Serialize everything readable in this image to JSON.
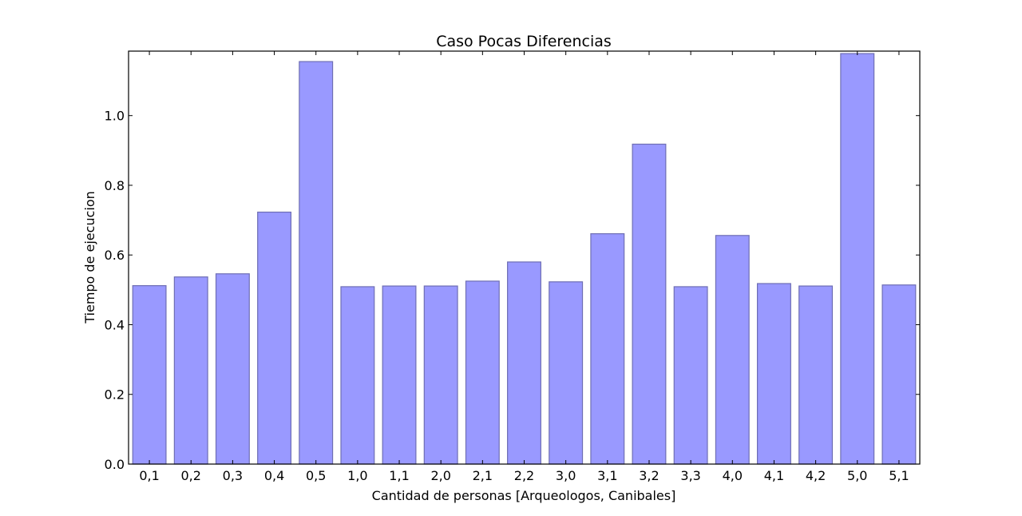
{
  "chart_data": {
    "type": "bar",
    "title": "Caso Pocas Diferencias",
    "xlabel": "Cantidad de personas [Arqueologos, Canibales]",
    "ylabel": "Tiempo de ejecucion",
    "categories": [
      "0,1",
      "0,2",
      "0,3",
      "0,4",
      "0,5",
      "1,0",
      "1,1",
      "2,0",
      "2,1",
      "2,2",
      "3,0",
      "3,1",
      "3,2",
      "3,3",
      "4,0",
      "4,1",
      "4,2",
      "5,0",
      "5,1"
    ],
    "values": [
      0.512,
      0.537,
      0.546,
      0.723,
      1.155,
      0.509,
      0.511,
      0.511,
      0.525,
      0.58,
      0.523,
      0.661,
      0.918,
      0.509,
      0.656,
      0.518,
      0.511,
      1.178,
      0.514
    ],
    "ylim": [
      0,
      1.185
    ],
    "yticks": [
      "0.0",
      "0.2",
      "0.4",
      "0.6",
      "0.8",
      "1.0"
    ],
    "bar_color": "#9999ff",
    "grid": false,
    "legend": "none"
  }
}
